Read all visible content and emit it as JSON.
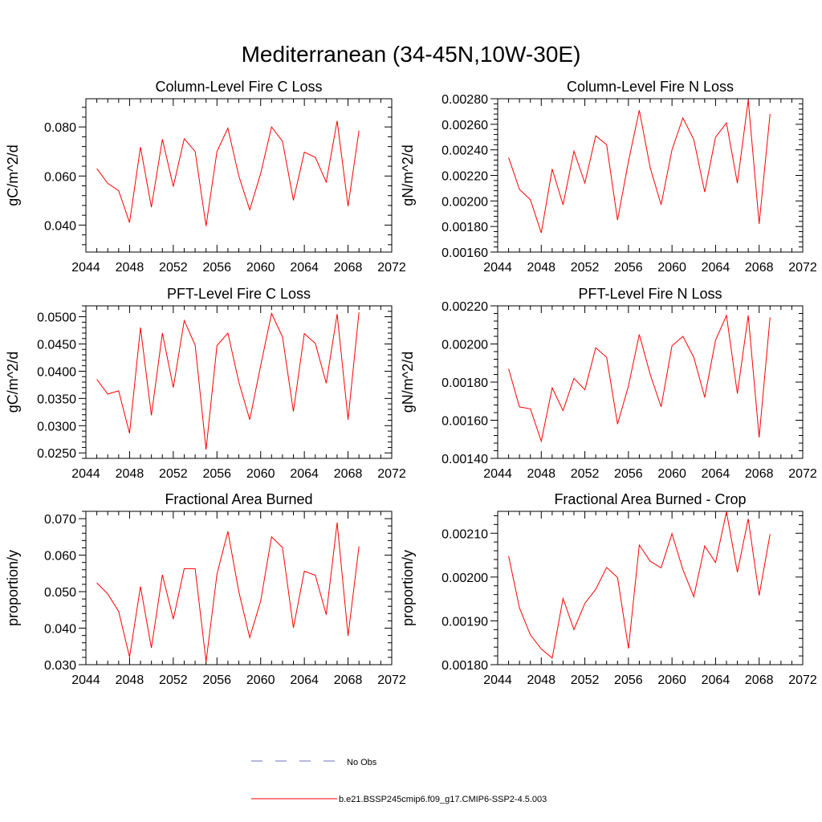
{
  "title": "Mediterranean (34-45N,10W-30E)",
  "chart_data": [
    {
      "type": "line",
      "title": "Column-Level Fire C Loss",
      "ylabel": "gC/m^2/d",
      "xlim": [
        2044,
        2072
      ],
      "ylim": [
        0.029,
        0.0915
      ],
      "xticks": [
        "2044",
        "2048",
        "2052",
        "2056",
        "2060",
        "2064",
        "2068",
        "2072"
      ],
      "yticks": [
        {
          "v": 0.04,
          "label": "0.040"
        },
        {
          "v": 0.06,
          "label": "0.060"
        },
        {
          "v": 0.08,
          "label": "0.080"
        }
      ],
      "x": [
        2045,
        2046,
        2047,
        2048,
        2049,
        2050,
        2051,
        2052,
        2053,
        2054,
        2055,
        2056,
        2057,
        2058,
        2059,
        2060,
        2061,
        2062,
        2063,
        2064,
        2065,
        2066,
        2067,
        2068,
        2069
      ],
      "values": [
        0.063,
        0.057,
        0.054,
        0.041,
        0.0718,
        0.0473,
        0.075,
        0.0557,
        0.0752,
        0.07,
        0.0396,
        0.07,
        0.0795,
        0.06,
        0.0462,
        0.061,
        0.08,
        0.0742,
        0.0501,
        0.0697,
        0.0676,
        0.0575,
        0.0825,
        0.0477,
        0.0785
      ]
    },
    {
      "type": "line",
      "title": "Column-Level Fire N Loss",
      "ylabel": "gN/m^2/d",
      "xlim": [
        2044,
        2072
      ],
      "ylim": [
        0.0016,
        0.0028
      ],
      "xticks": [
        "2044",
        "2048",
        "2052",
        "2056",
        "2060",
        "2064",
        "2068",
        "2072"
      ],
      "yticks": [
        {
          "v": 0.0016,
          "label": "0.00160"
        },
        {
          "v": 0.0018,
          "label": "0.00180"
        },
        {
          "v": 0.002,
          "label": "0.00200"
        },
        {
          "v": 0.0022,
          "label": "0.00220"
        },
        {
          "v": 0.0024,
          "label": "0.00240"
        },
        {
          "v": 0.0026,
          "label": "0.00260"
        },
        {
          "v": 0.0028,
          "label": "0.00280"
        }
      ],
      "x": [
        2045,
        2046,
        2047,
        2048,
        2049,
        2050,
        2051,
        2052,
        2053,
        2054,
        2055,
        2056,
        2057,
        2058,
        2059,
        2060,
        2061,
        2062,
        2063,
        2064,
        2065,
        2066,
        2067,
        2068,
        2069
      ],
      "values": [
        0.00234,
        0.00209,
        0.00201,
        0.00175,
        0.00225,
        0.00197,
        0.00239,
        0.00214,
        0.00251,
        0.00244,
        0.00185,
        0.00231,
        0.00271,
        0.00226,
        0.00197,
        0.0024,
        0.00265,
        0.00248,
        0.00207,
        0.0025,
        0.00261,
        0.00214,
        0.00279,
        0.00182,
        0.00268
      ]
    },
    {
      "type": "line",
      "title": "PFT-Level Fire C Loss",
      "ylabel": "gC/m^2/d",
      "xlim": [
        2044,
        2072
      ],
      "ylim": [
        0.024,
        0.052
      ],
      "xticks": [
        "2044",
        "2048",
        "2052",
        "2056",
        "2060",
        "2064",
        "2068",
        "2072"
      ],
      "yticks": [
        {
          "v": 0.025,
          "label": "0.0250"
        },
        {
          "v": 0.03,
          "label": "0.0300"
        },
        {
          "v": 0.035,
          "label": "0.0350"
        },
        {
          "v": 0.04,
          "label": "0.0400"
        },
        {
          "v": 0.045,
          "label": "0.0450"
        },
        {
          "v": 0.05,
          "label": "0.0500"
        }
      ],
      "x": [
        2045,
        2046,
        2047,
        2048,
        2049,
        2050,
        2051,
        2052,
        2053,
        2054,
        2055,
        2056,
        2057,
        2058,
        2059,
        2060,
        2061,
        2062,
        2063,
        2064,
        2065,
        2066,
        2067,
        2068,
        2069
      ],
      "values": [
        0.0385,
        0.0358,
        0.0364,
        0.0286,
        0.048,
        0.0319,
        0.047,
        0.037,
        0.0493,
        0.0448,
        0.0256,
        0.0447,
        0.047,
        0.038,
        0.0311,
        0.041,
        0.0506,
        0.0463,
        0.0326,
        0.0469,
        0.0451,
        0.0378,
        0.0505,
        0.0311,
        0.0508
      ]
    },
    {
      "type": "line",
      "title": "PFT-Level Fire N Loss",
      "ylabel": "gN/m^2/d",
      "xlim": [
        2044,
        2072
      ],
      "ylim": [
        0.0014,
        0.0022
      ],
      "xticks": [
        "2044",
        "2048",
        "2052",
        "2056",
        "2060",
        "2064",
        "2068",
        "2072"
      ],
      "yticks": [
        {
          "v": 0.0014,
          "label": "0.00140"
        },
        {
          "v": 0.0016,
          "label": "0.00160"
        },
        {
          "v": 0.0018,
          "label": "0.00180"
        },
        {
          "v": 0.002,
          "label": "0.00200"
        },
        {
          "v": 0.0022,
          "label": "0.00220"
        }
      ],
      "x": [
        2045,
        2046,
        2047,
        2048,
        2049,
        2050,
        2051,
        2052,
        2053,
        2054,
        2055,
        2056,
        2057,
        2058,
        2059,
        2060,
        2061,
        2062,
        2063,
        2064,
        2065,
        2066,
        2067,
        2068,
        2069
      ],
      "values": [
        0.00187,
        0.00167,
        0.00166,
        0.00149,
        0.00177,
        0.00165,
        0.00182,
        0.00176,
        0.00198,
        0.00193,
        0.00158,
        0.00178,
        0.00205,
        0.00184,
        0.00167,
        0.00199,
        0.00204,
        0.00193,
        0.00172,
        0.00202,
        0.00215,
        0.00174,
        0.00215,
        0.00151,
        0.00214
      ]
    },
    {
      "type": "line",
      "title": "Fractional Area Burned",
      "ylabel": "proportion/y",
      "xlim": [
        2044,
        2072
      ],
      "ylim": [
        0.03,
        0.072
      ],
      "xticks": [
        "2044",
        "2048",
        "2052",
        "2056",
        "2060",
        "2064",
        "2068",
        "2072"
      ],
      "yticks": [
        {
          "v": 0.03,
          "label": "0.030"
        },
        {
          "v": 0.04,
          "label": "0.040"
        },
        {
          "v": 0.05,
          "label": "0.050"
        },
        {
          "v": 0.06,
          "label": "0.060"
        },
        {
          "v": 0.07,
          "label": "0.070"
        }
      ],
      "x": [
        2045,
        2046,
        2047,
        2048,
        2049,
        2050,
        2051,
        2052,
        2053,
        2054,
        2055,
        2056,
        2057,
        2058,
        2059,
        2060,
        2061,
        2062,
        2063,
        2064,
        2065,
        2066,
        2067,
        2068,
        2069
      ],
      "values": [
        0.0524,
        0.0494,
        0.0446,
        0.0321,
        0.0514,
        0.0346,
        0.0546,
        0.0425,
        0.0563,
        0.0563,
        0.0308,
        0.0548,
        0.0665,
        0.05,
        0.0374,
        0.0474,
        0.065,
        0.0621,
        0.0401,
        0.0556,
        0.0545,
        0.0437,
        0.0689,
        0.0379,
        0.0624
      ]
    },
    {
      "type": "line",
      "title": "Fractional Area Burned - Crop",
      "ylabel": "proportion/y",
      "xlim": [
        2044,
        2072
      ],
      "ylim": [
        0.0018,
        0.00215
      ],
      "xticks": [
        "2044",
        "2048",
        "2052",
        "2056",
        "2060",
        "2064",
        "2068",
        "2072"
      ],
      "yticks": [
        {
          "v": 0.0018,
          "label": "0.00180"
        },
        {
          "v": 0.0019,
          "label": "0.00190"
        },
        {
          "v": 0.002,
          "label": "0.00200"
        },
        {
          "v": 0.0021,
          "label": "0.00210"
        }
      ],
      "x": [
        2045,
        2046,
        2047,
        2048,
        2049,
        2050,
        2051,
        2052,
        2053,
        2054,
        2055,
        2056,
        2057,
        2058,
        2059,
        2060,
        2061,
        2062,
        2063,
        2064,
        2065,
        2066,
        2067,
        2068,
        2069
      ],
      "values": [
        0.002048,
        0.00193,
        0.001868,
        0.001836,
        0.001815,
        0.001951,
        0.00188,
        0.00194,
        0.001972,
        0.002022,
        0.001999,
        0.001837,
        0.002073,
        0.002036,
        0.002021,
        0.002099,
        0.002017,
        0.001955,
        0.002071,
        0.002033,
        0.002149,
        0.002011,
        0.002133,
        0.001958,
        0.002098
      ]
    }
  ],
  "legend": {
    "entries": [
      {
        "label": "No Obs",
        "style": "dashed",
        "color": "#6f70b8"
      },
      {
        "label": "b.e21.BSSP245cmip6.f09_g17.CMIP6-SSP2-4.5.003",
        "style": "solid",
        "color": "#ff0000"
      }
    ]
  },
  "colors": {
    "series": "#ff0000",
    "axis": "#000000"
  }
}
